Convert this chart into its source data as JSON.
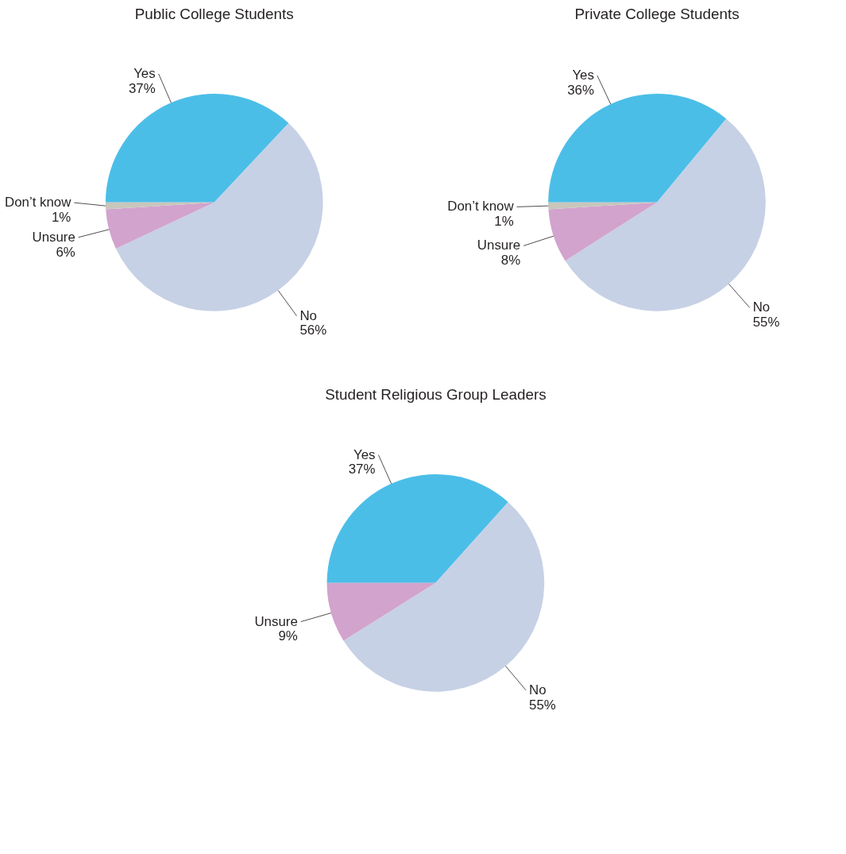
{
  "chart_data": [
    {
      "type": "pie",
      "title": "Public College Students",
      "categories": [
        "Yes",
        "No",
        "Unsure",
        "Don’t know"
      ],
      "values": [
        37,
        56,
        6,
        1
      ],
      "colors": [
        "#4bbee8",
        "#c6d1e5",
        "#d2a3cd",
        "#c8c6bd"
      ],
      "value_labels": [
        "37%",
        "56%",
        "6%",
        "1%"
      ]
    },
    {
      "type": "pie",
      "title": "Private College Students",
      "categories": [
        "Yes",
        "No",
        "Unsure",
        "Don’t know"
      ],
      "values": [
        36,
        55,
        8,
        1
      ],
      "colors": [
        "#4bbee8",
        "#c6d1e5",
        "#d2a3cd",
        "#c8c6bd"
      ],
      "value_labels": [
        "36%",
        "55%",
        "8%",
        "1%"
      ]
    },
    {
      "type": "pie",
      "title": "Student Religious Group Leaders",
      "categories": [
        "Yes",
        "No",
        "Unsure"
      ],
      "values": [
        37,
        55,
        9
      ],
      "colors": [
        "#4bbee8",
        "#c6d1e5",
        "#d2a3cd"
      ],
      "value_labels": [
        "37%",
        "55%",
        "9%"
      ]
    }
  ]
}
